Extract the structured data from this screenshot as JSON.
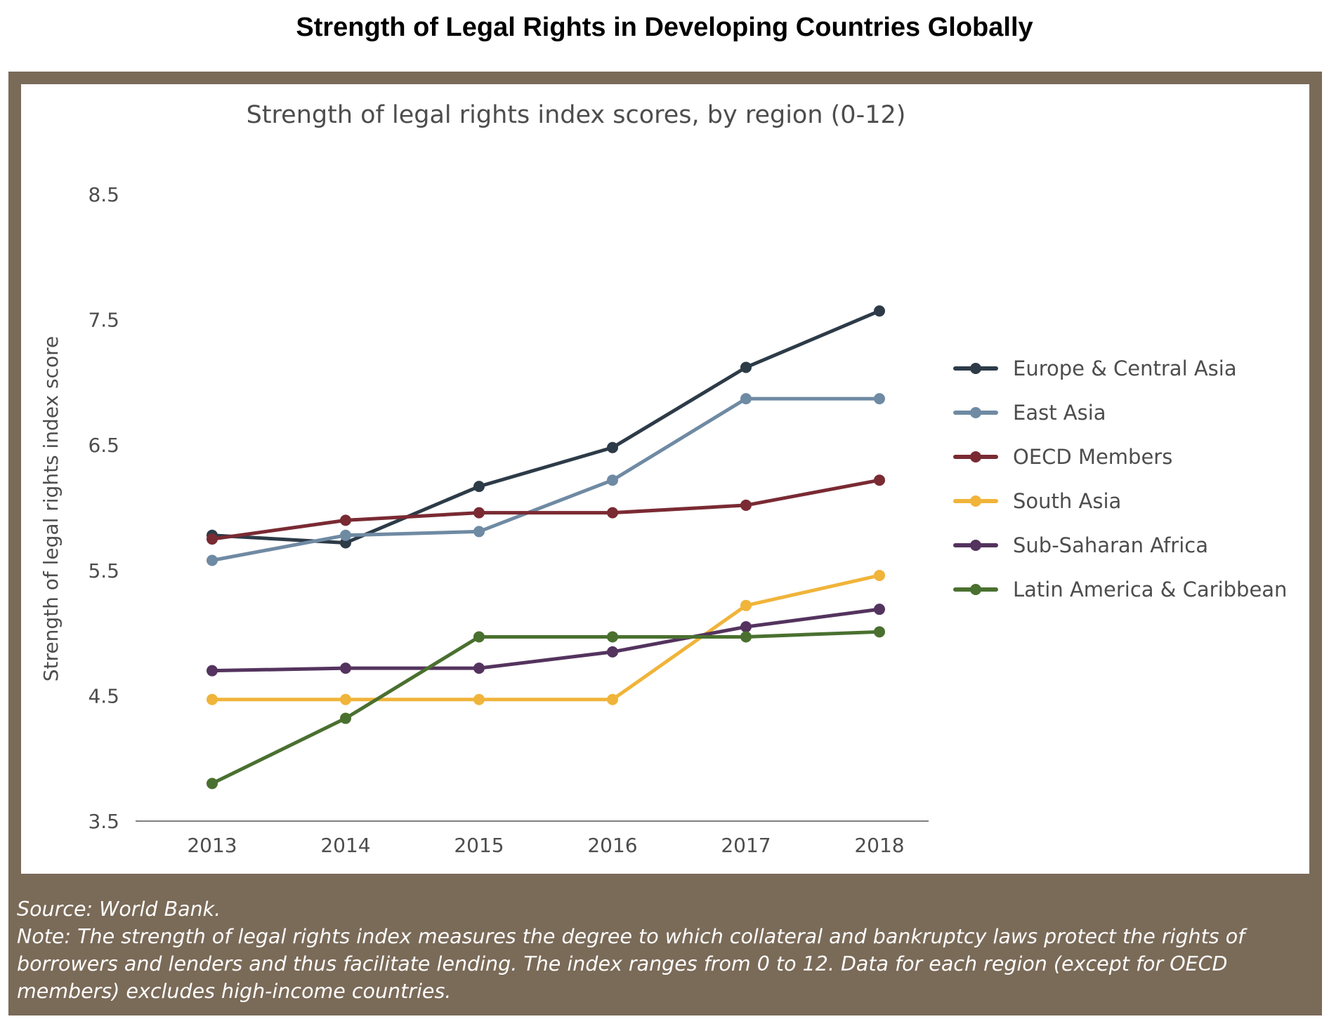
{
  "page_title": "Strength of Legal Rights in Developing Countries Globally",
  "colors": {
    "frame": "#7a6a58",
    "axis_text": "#4d4d4d",
    "title_text": "#4d4d4d"
  },
  "footer": {
    "source": "Source: World Bank.",
    "note": "Note: The strength of legal rights index measures the degree to which collateral and bankruptcy laws protect the rights of borrowers and lenders and thus facilitate lending. The index ranges from 0 to 12. Data for each region (except for OECD members) excludes high-income countries."
  },
  "chart_data": {
    "type": "line",
    "title": "Strength  of legal rights index scores, by region (0-12)",
    "xlabel": "",
    "ylabel": "Strength of legal rights index score",
    "x": [
      "2013",
      "2014",
      "2015",
      "2016",
      "2017",
      "2018"
    ],
    "ylim": [
      3.5,
      8.5
    ],
    "y_ticks": [
      "3.5",
      "4.5",
      "5.5",
      "6.5",
      "7.5",
      "8.5"
    ],
    "grid": false,
    "legend_position": "right",
    "series": [
      {
        "name": "Europe & Central Asia",
        "color": "#2d3b48",
        "values": [
          5.78,
          5.72,
          6.17,
          6.48,
          7.12,
          7.57
        ]
      },
      {
        "name": "East Asia",
        "color": "#6f8aa3",
        "values": [
          5.58,
          5.78,
          5.81,
          6.22,
          6.87,
          6.87
        ]
      },
      {
        "name": "OECD Members",
        "color": "#7a2a33",
        "values": [
          5.75,
          5.9,
          5.96,
          5.96,
          6.02,
          6.22
        ]
      },
      {
        "name": "South Asia",
        "color": "#f0b43a",
        "values": [
          4.47,
          4.47,
          4.47,
          4.47,
          5.22,
          5.46
        ]
      },
      {
        "name": "Sub-Saharan Africa",
        "color": "#54335e",
        "values": [
          4.7,
          4.72,
          4.72,
          4.85,
          5.05,
          5.19
        ]
      },
      {
        "name": "Latin America & Caribbean",
        "color": "#4a7030",
        "values": [
          3.8,
          4.32,
          4.97,
          4.97,
          4.97,
          5.01
        ]
      }
    ]
  }
}
